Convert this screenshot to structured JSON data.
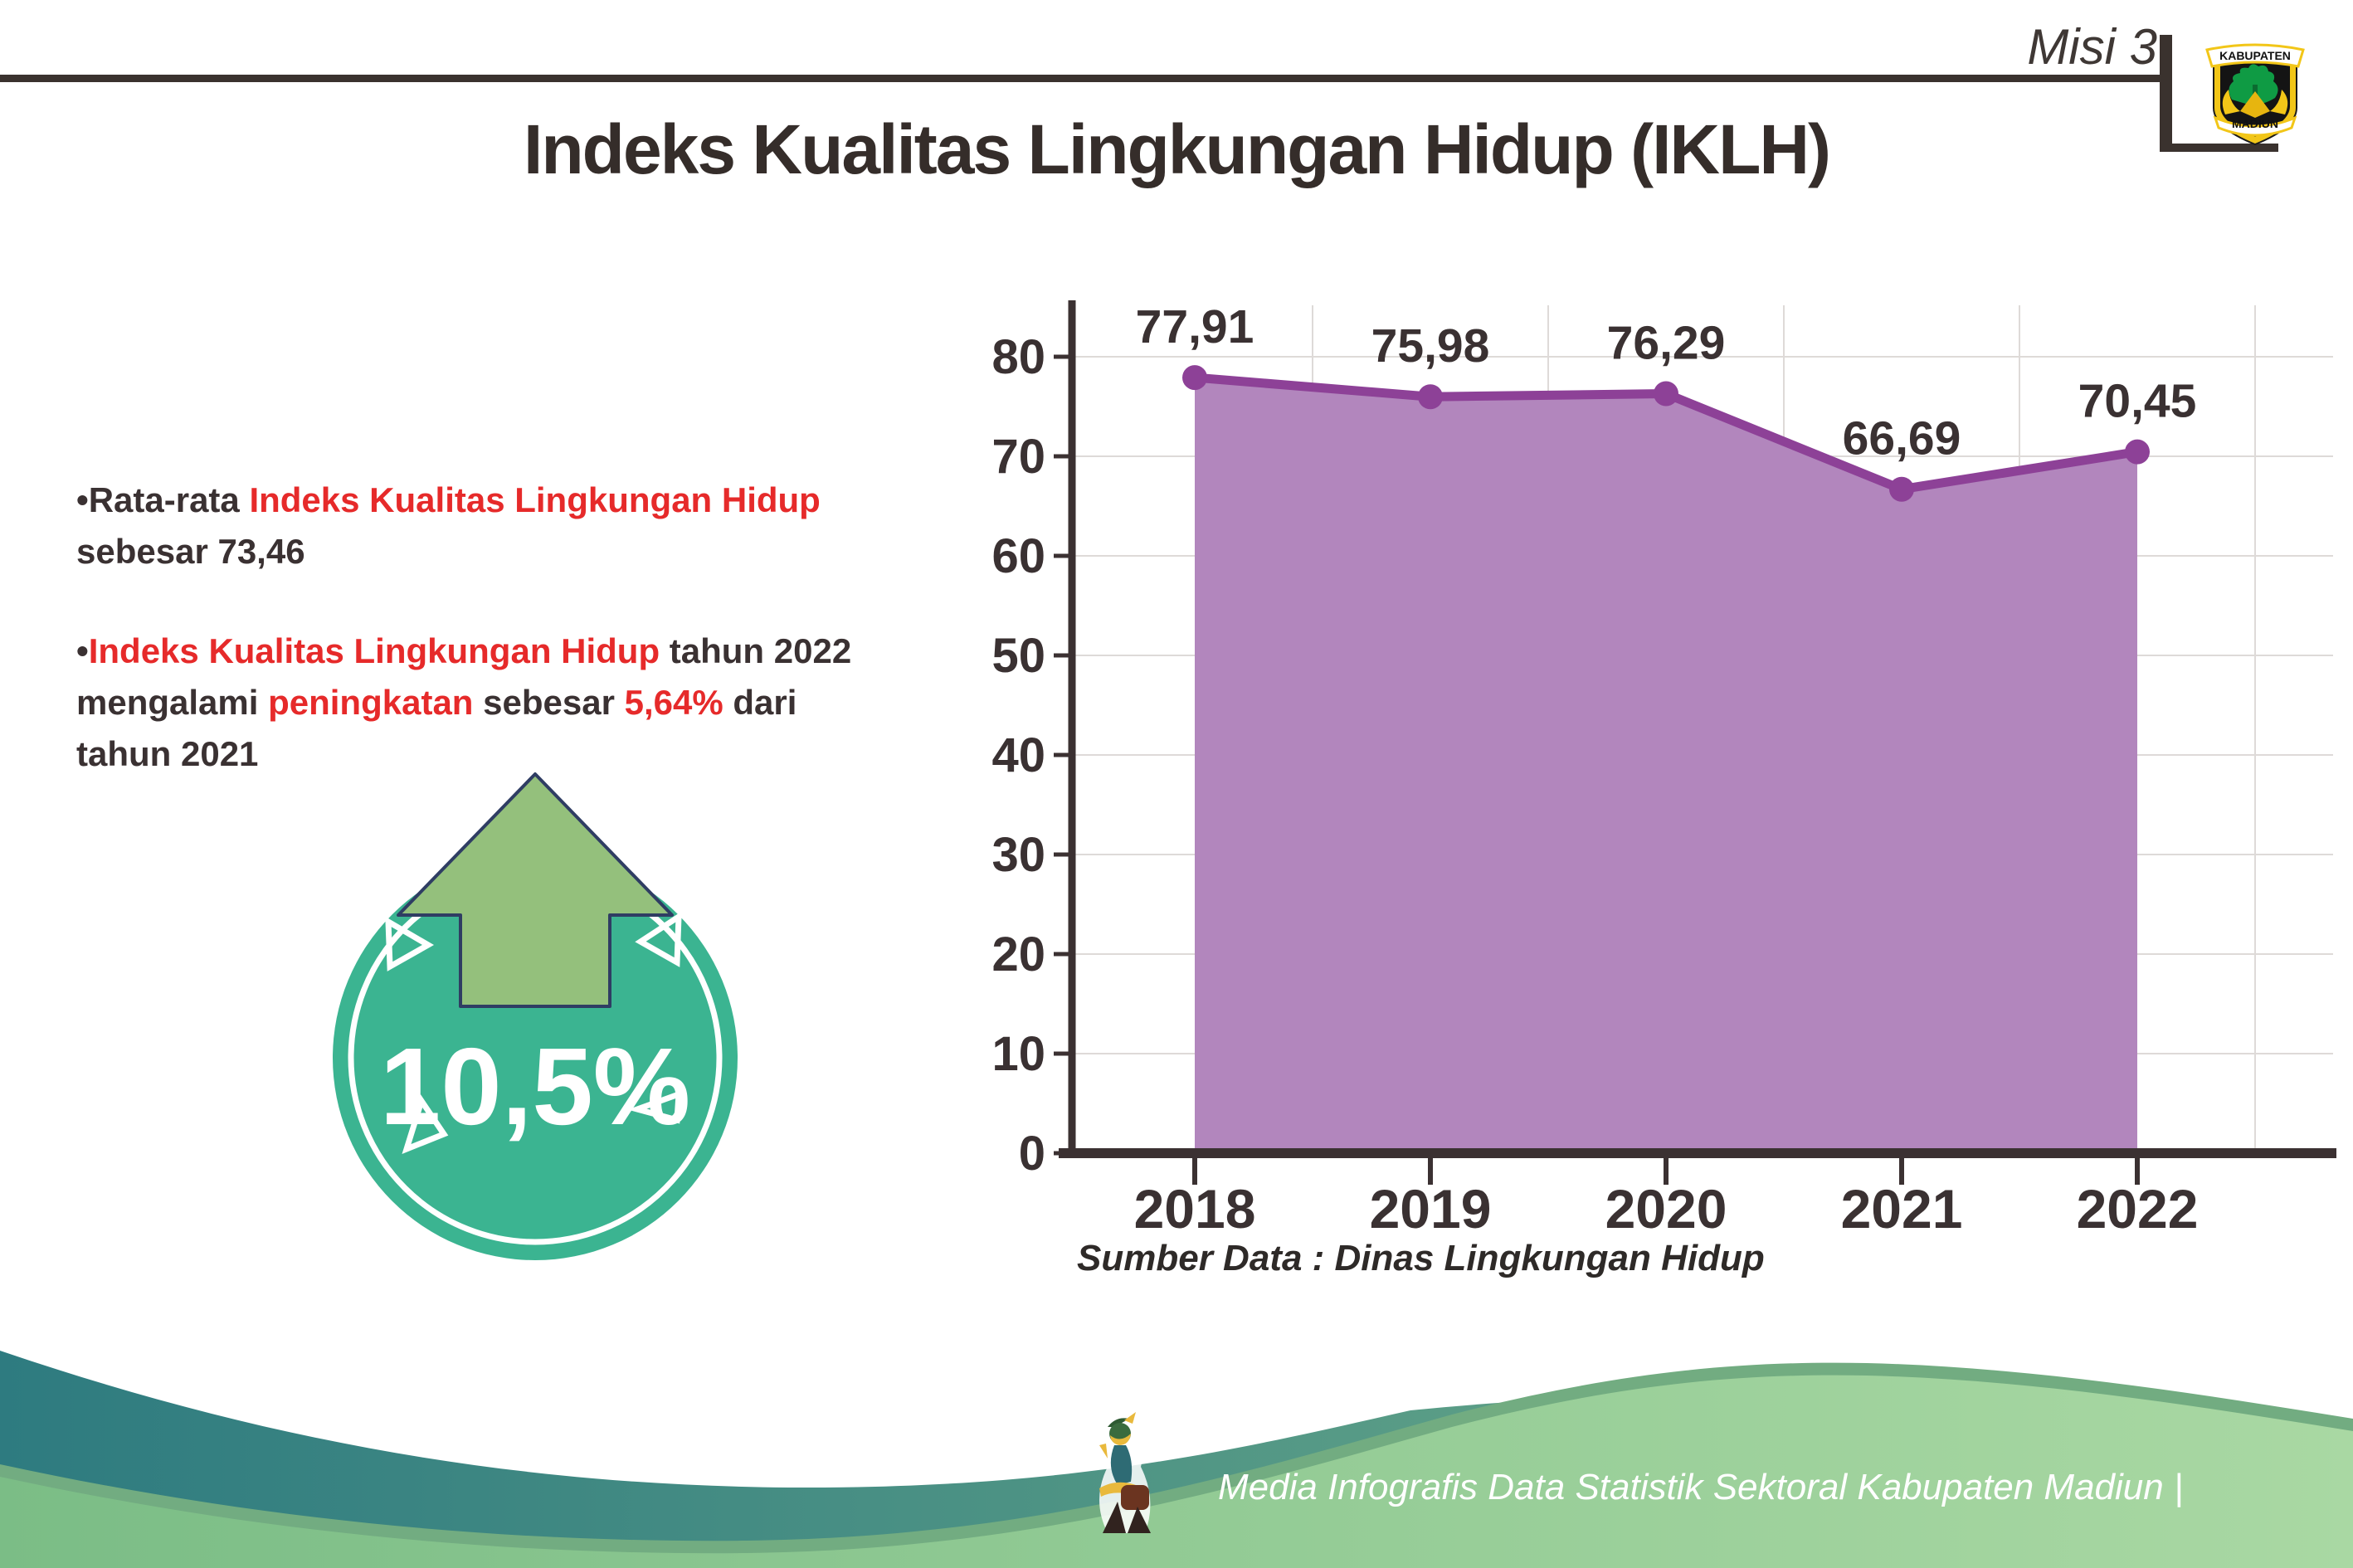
{
  "header": {
    "misi_label": "Misi 3",
    "title": "Indeks Kualitas Lingkungan Hidup (IKLH)",
    "logo_top_text": "KABUPATEN",
    "logo_bottom_text": "MADIUN"
  },
  "bullets": {
    "b1": {
      "lines": [
        [
          {
            "t": "•Rata-rata ",
            "c": "dark"
          },
          {
            "t": "Indeks Kualitas Lingkungan Hidup",
            "c": "red"
          }
        ],
        [
          {
            "t": "sebesar 73,46",
            "c": "dark"
          }
        ]
      ]
    },
    "b2": {
      "lines": [
        [
          {
            "t": "•",
            "c": "dark"
          },
          {
            "t": "Indeks Kualitas Lingkungan Hidup",
            "c": "red"
          },
          {
            "t": " tahun 2022",
            "c": "dark"
          }
        ],
        [
          {
            "t": "mengalami ",
            "c": "dark"
          },
          {
            "t": "peningkatan",
            "c": "red"
          },
          {
            "t": " sebesar ",
            "c": "dark"
          },
          {
            "t": "5,64%",
            "c": "red"
          },
          {
            "t": " dari",
            "c": "dark"
          }
        ],
        [
          {
            "t": "tahun 2021",
            "c": "dark"
          }
        ]
      ]
    }
  },
  "badge": {
    "value": "10,5%"
  },
  "chart_data": {
    "type": "area",
    "categories": [
      "2018",
      "2019",
      "2020",
      "2021",
      "2022"
    ],
    "values": [
      77.91,
      75.98,
      76.29,
      66.69,
      70.45
    ],
    "value_labels": [
      "77,91",
      "75,98",
      "76,29",
      "66,69",
      "70,45"
    ],
    "title": "",
    "xlabel": "",
    "ylabel": "",
    "ylim": [
      0,
      80
    ],
    "ytick_step": 10,
    "grid": true,
    "legend": "none",
    "fill_color": "#b286bd",
    "line_color": "#8d4197",
    "axis_color": "#3b3132",
    "grid_color": "#dedad8",
    "label_color": "#3a3132"
  },
  "source_note": "Sumber Data : Dinas Lingkungan Hidup",
  "footer": {
    "text": "Media Infografis Data Statistik Sektoral Kabupaten Madiun |"
  },
  "colors": {
    "dark": "#3a3132",
    "red": "#e62a2a",
    "badge_teal": "#3bb491",
    "arrow_green": "#94c07c",
    "arrow_outline": "#2f3d63",
    "footer_teal_left": "#2e7b80",
    "footer_teal_right": "#74b18a",
    "footer_green_left": "#7bbd86",
    "footer_green_right": "#a9d8a3",
    "footer_stripe": "#72ac81"
  }
}
